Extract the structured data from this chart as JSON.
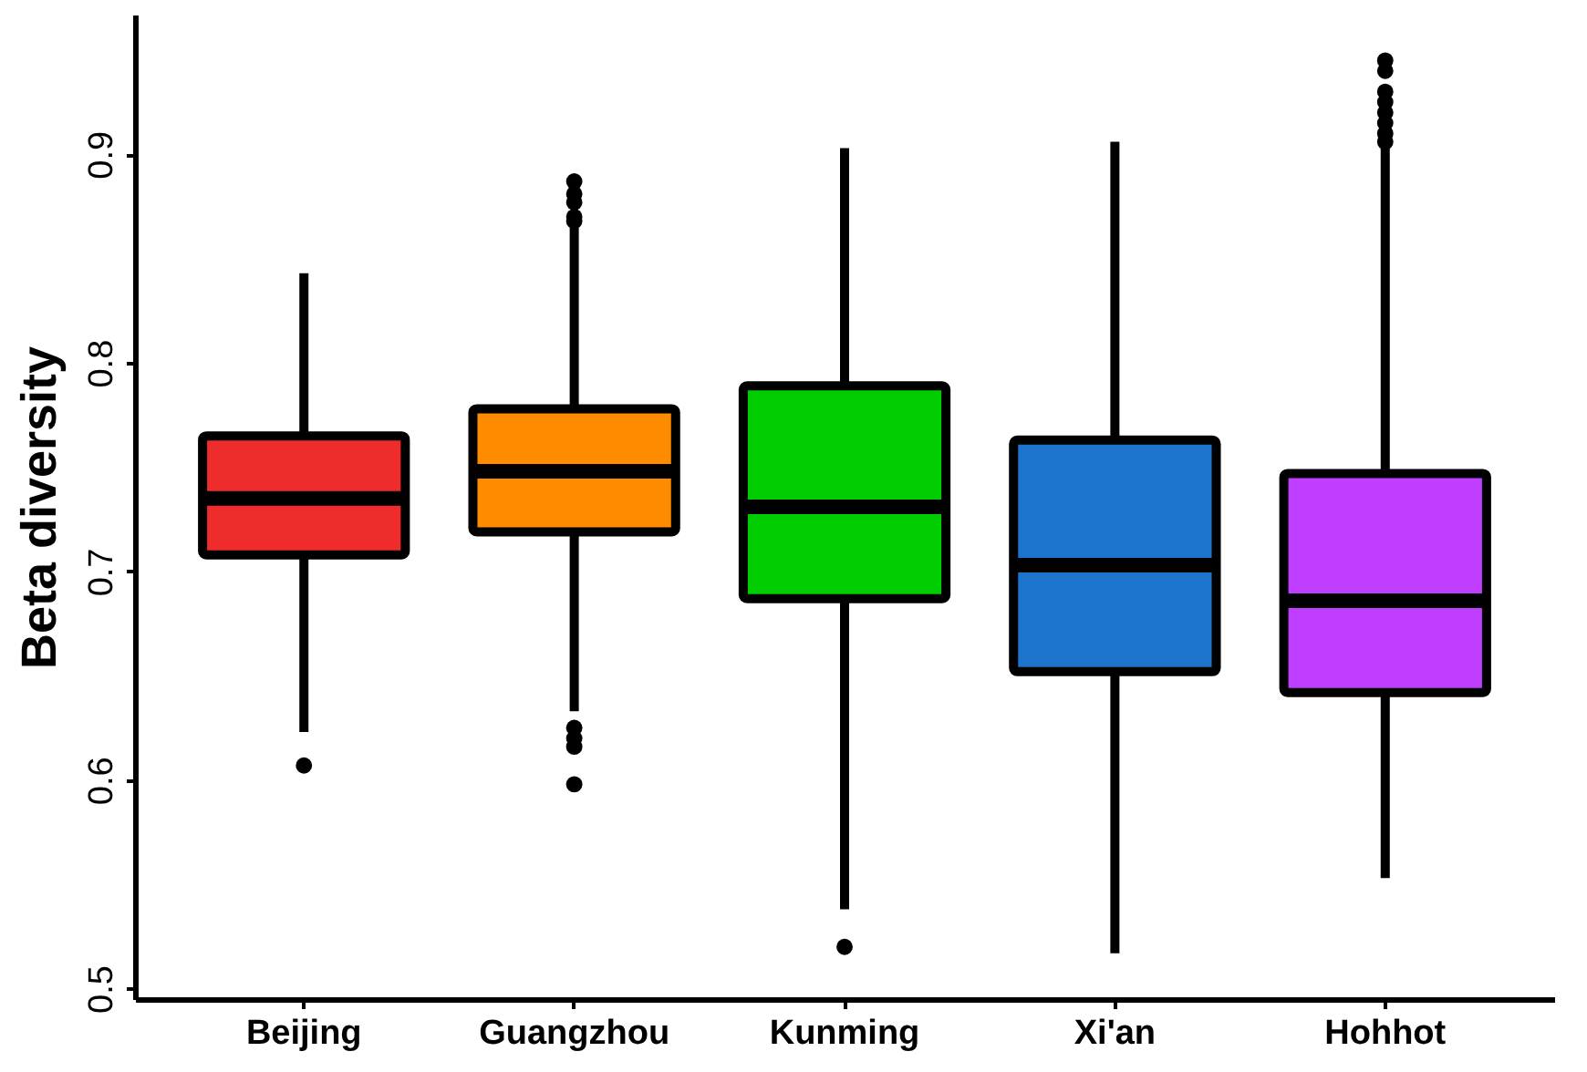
{
  "chart_data": {
    "type": "box",
    "ylabel": "Beta diversity",
    "categories": [
      "Beijing",
      "Guangzhou",
      "Kunming",
      "Xi'an",
      "Hohhot"
    ],
    "colors": [
      "#ee2c2c",
      "#ff8c00",
      "#00cd00",
      "#1c74cd",
      "#bf3eff"
    ],
    "boxes": [
      {
        "low": 0.623,
        "q1": 0.708,
        "median": 0.735,
        "q3": 0.765,
        "high": 0.843,
        "outliers": [
          0.607
        ]
      },
      {
        "low": 0.633,
        "q1": 0.719,
        "median": 0.748,
        "q3": 0.778,
        "high": 0.865,
        "outliers": [
          0.868,
          0.87,
          0.877,
          0.881,
          0.887,
          0.598,
          0.616,
          0.62,
          0.625
        ]
      },
      {
        "low": 0.538,
        "q1": 0.687,
        "median": 0.731,
        "q3": 0.789,
        "high": 0.903,
        "outliers": [
          0.52
        ]
      },
      {
        "low": 0.517,
        "q1": 0.652,
        "median": 0.703,
        "q3": 0.763,
        "high": 0.906
      },
      {
        "low": 0.553,
        "q1": 0.642,
        "median": 0.686,
        "q3": 0.747,
        "high": 0.903,
        "outliers": [
          0.906,
          0.91,
          0.915,
          0.92,
          0.925,
          0.93,
          0.94,
          0.945
        ]
      }
    ],
    "ylim": [
      0.495,
      0.967
    ],
    "yticks": [
      0.5,
      0.6,
      0.7,
      0.8,
      0.9
    ],
    "grid": false
  }
}
